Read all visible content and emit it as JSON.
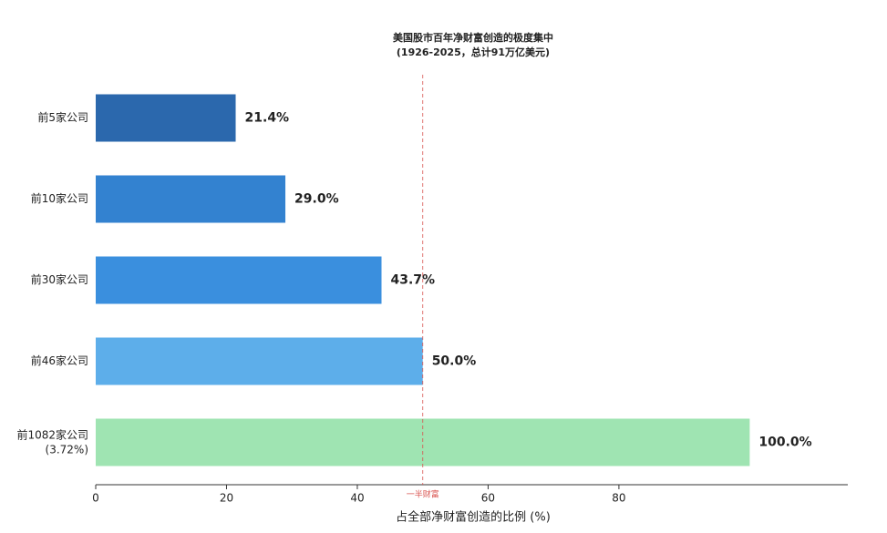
{
  "chart_data": {
    "type": "barh",
    "title": "美国股市百年净财富创造的极度集中",
    "subtitle": "(1926-2025，总计91万亿美元)",
    "categories": [
      "前5家公司",
      "前10家公司",
      "前30家公司",
      "前46家公司",
      "前1082家公司\n(3.72%)"
    ],
    "values": [
      21.4,
      29.0,
      43.7,
      50.0,
      100.0
    ],
    "value_labels": [
      "21.4%",
      "29.0%",
      "43.7%",
      "50.0%",
      "100.0%"
    ],
    "colors": [
      "#2b68ad",
      "#3382d0",
      "#3a8fde",
      "#5daeea",
      "#9fe4b2"
    ],
    "x_label": "占全部净财富创造的比例 (%)",
    "xlim": [
      0,
      115
    ],
    "xticks": [
      0,
      20,
      40,
      60,
      80
    ],
    "reference_line": {
      "value": 50,
      "label": "一半财富",
      "color": "#d9534f"
    }
  }
}
